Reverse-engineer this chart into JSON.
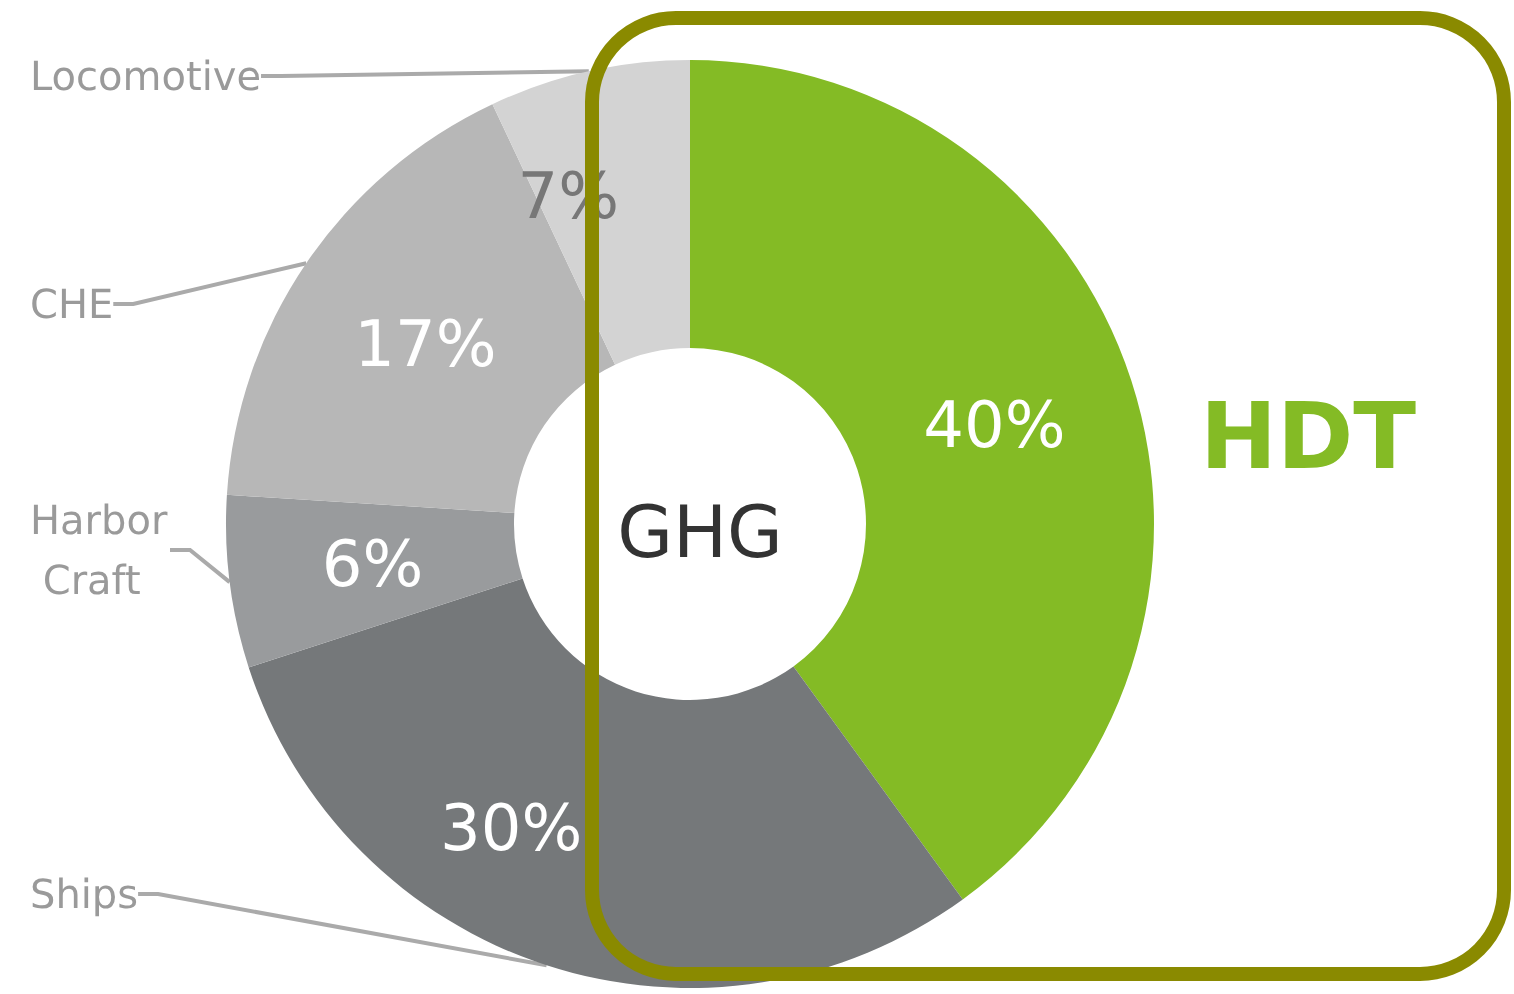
{
  "chart_data": {
    "type": "donut",
    "title": "GHG",
    "categories": [
      "HDT",
      "Ships",
      "Harbor Craft",
      "CHE",
      "Locomotive"
    ],
    "values": [
      40,
      30,
      6,
      17,
      7
    ],
    "value_labels": [
      "40%",
      "30%",
      "6%",
      "17%",
      "7%"
    ],
    "colors": [
      "#84bb25",
      "#75787a",
      "#999b9d",
      "#b7b7b7",
      "#d3d3d3"
    ],
    "legend": false
  }
}
